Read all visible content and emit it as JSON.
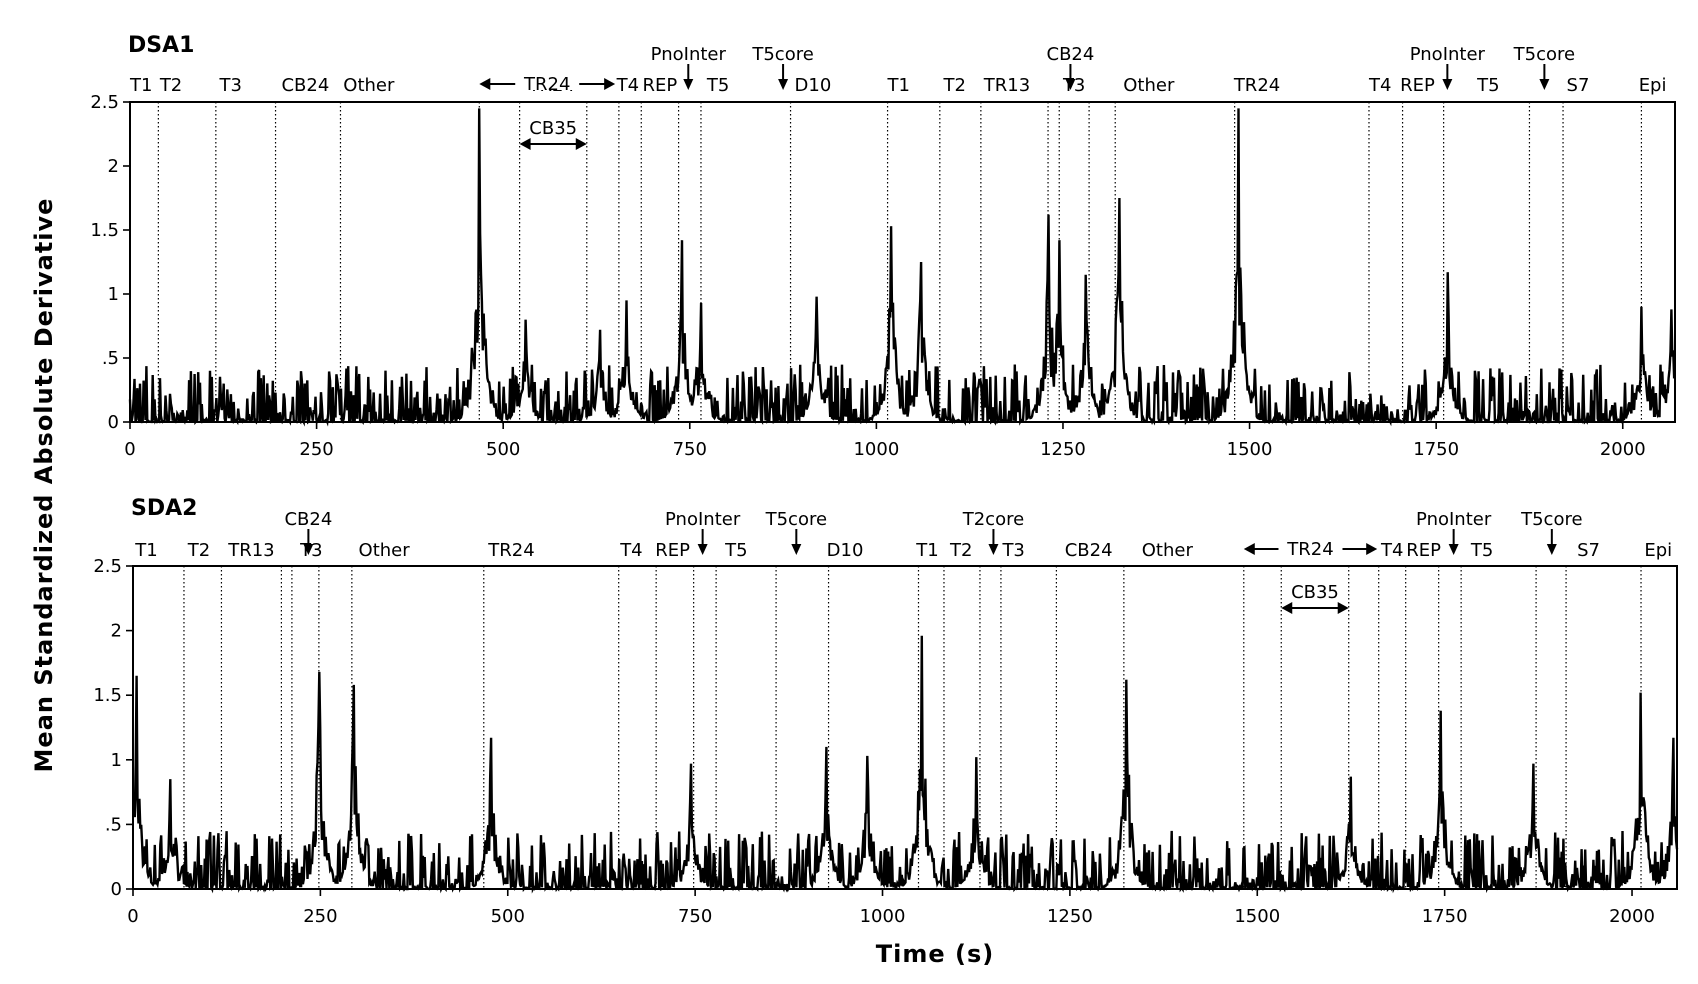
{
  "figure": {
    "ylabel": "Mean Standardized Absolute Derivative",
    "xlabel": "Time (s)"
  },
  "chart_data": [
    {
      "type": "line",
      "title": "DSA1",
      "xlim": [
        0,
        2070
      ],
      "ylim": [
        0,
        2.5
      ],
      "xticks": [
        0,
        250,
        500,
        750,
        1000,
        1250,
        1500,
        1750,
        2000
      ],
      "yticks": [
        0,
        0.5,
        1,
        1.5,
        2,
        2.5
      ],
      "ytick_labels": [
        "0",
        ".5",
        "1",
        "1.5",
        "2",
        "2.5"
      ],
      "grid": false,
      "boundaries": [
        38,
        115,
        195,
        282,
        468,
        522,
        612,
        655,
        685,
        735,
        765,
        885,
        1015,
        1085,
        1140,
        1230,
        1245,
        1285,
        1320,
        1480,
        1660,
        1705,
        1760,
        1875,
        1920,
        2025
      ],
      "segments": [
        {
          "label": "T1",
          "x": 15
        },
        {
          "label": "T2",
          "x": 55
        },
        {
          "label": "T3",
          "x": 135
        },
        {
          "label": "CB24",
          "x": 235
        },
        {
          "label": "Other",
          "x": 320
        },
        {
          "label": "TR24",
          "x": 565
        },
        {
          "label": "T4",
          "x": 667
        },
        {
          "label": "REP",
          "x": 710
        },
        {
          "label": "T5",
          "x": 788
        },
        {
          "label": "D10",
          "x": 915
        },
        {
          "label": "T1",
          "x": 1030
        },
        {
          "label": "T2",
          "x": 1105
        },
        {
          "label": "TR13",
          "x": 1175
        },
        {
          "label": "T3",
          "x": 1265
        },
        {
          "label": "Other",
          "x": 1365
        },
        {
          "label": "TR24",
          "x": 1510
        },
        {
          "label": "T4",
          "x": 1675
        },
        {
          "label": "REP",
          "x": 1725
        },
        {
          "label": "T5",
          "x": 1820
        },
        {
          "label": "S7",
          "x": 1940
        },
        {
          "label": "Epi",
          "x": 2040
        }
      ],
      "events": [
        {
          "label": "PnoInter",
          "x": 748
        },
        {
          "label": "T5core",
          "x": 875
        },
        {
          "label": "CB24",
          "x": 1260
        },
        {
          "label": "PnoInter",
          "x": 1765
        },
        {
          "label": "T5core",
          "x": 1895
        }
      ],
      "spans": [
        {
          "label": "TR24",
          "x_start": 468,
          "x_end": 650
        },
        {
          "label": "CB35",
          "x_start": 522,
          "x_end": 612
        }
      ],
      "peaks": [
        {
          "x": 468,
          "y": 2.45
        },
        {
          "x": 530,
          "y": 0.8
        },
        {
          "x": 630,
          "y": 0.72
        },
        {
          "x": 665,
          "y": 0.95
        },
        {
          "x": 740,
          "y": 1.42
        },
        {
          "x": 765,
          "y": 0.93
        },
        {
          "x": 920,
          "y": 0.98
        },
        {
          "x": 1020,
          "y": 1.53
        },
        {
          "x": 1060,
          "y": 1.25
        },
        {
          "x": 1230,
          "y": 1.62
        },
        {
          "x": 1245,
          "y": 1.42
        },
        {
          "x": 1280,
          "y": 1.15
        },
        {
          "x": 1325,
          "y": 1.75
        },
        {
          "x": 1485,
          "y": 2.45
        },
        {
          "x": 1765,
          "y": 1.17
        },
        {
          "x": 2025,
          "y": 0.9
        },
        {
          "x": 2065,
          "y": 0.88
        }
      ]
    },
    {
      "type": "line",
      "title": "SDA2",
      "xlim": [
        0,
        2060
      ],
      "ylim": [
        0,
        2.5
      ],
      "xticks": [
        0,
        250,
        500,
        750,
        1000,
        1250,
        1500,
        1750,
        2000
      ],
      "yticks": [
        0,
        0.5,
        1,
        1.5,
        2,
        2.5
      ],
      "ytick_labels": [
        "0",
        ".5",
        "1",
        "1.5",
        "2",
        "2.5"
      ],
      "grid": false,
      "boundaries": [
        68,
        118,
        198,
        212,
        248,
        292,
        468,
        648,
        698,
        748,
        778,
        858,
        928,
        1048,
        1082,
        1130,
        1158,
        1232,
        1322,
        1482,
        1532,
        1622,
        1662,
        1698,
        1742,
        1772,
        1872,
        1912,
        2012
      ],
      "segments": [
        {
          "label": "T1",
          "x": 18
        },
        {
          "label": "T2",
          "x": 88
        },
        {
          "label": "TR13",
          "x": 158
        },
        {
          "label": "T3",
          "x": 238
        },
        {
          "label": "Other",
          "x": 335
        },
        {
          "label": "TR24",
          "x": 505
        },
        {
          "label": "T4",
          "x": 665
        },
        {
          "label": "REP",
          "x": 720
        },
        {
          "label": "T5",
          "x": 805
        },
        {
          "label": "D10",
          "x": 950
        },
        {
          "label": "T1",
          "x": 1060
        },
        {
          "label": "T2",
          "x": 1105
        },
        {
          "label": "T3",
          "x": 1175
        },
        {
          "label": "CB24",
          "x": 1275
        },
        {
          "label": "Other",
          "x": 1380
        },
        {
          "label": "T4",
          "x": 1680
        },
        {
          "label": "REP",
          "x": 1722
        },
        {
          "label": "T5",
          "x": 1800
        },
        {
          "label": "S7",
          "x": 1942
        },
        {
          "label": "Epi",
          "x": 2035
        }
      ],
      "events": [
        {
          "label": "CB24",
          "x": 234
        },
        {
          "label": "PnoInter",
          "x": 760
        },
        {
          "label": "T5core",
          "x": 885
        },
        {
          "label": "T2core",
          "x": 1148
        },
        {
          "label": "PnoInter",
          "x": 1762
        },
        {
          "label": "T5core",
          "x": 1893
        }
      ],
      "spans": [
        {
          "label": "TR24",
          "x_start": 1482,
          "x_end": 1660
        },
        {
          "label": "CB35",
          "x_start": 1532,
          "x_end": 1622
        }
      ],
      "peaks": [
        {
          "x": 5,
          "y": 1.65
        },
        {
          "x": 50,
          "y": 0.85
        },
        {
          "x": 248,
          "y": 1.68
        },
        {
          "x": 295,
          "y": 1.58
        },
        {
          "x": 478,
          "y": 1.17
        },
        {
          "x": 745,
          "y": 0.97
        },
        {
          "x": 925,
          "y": 1.1
        },
        {
          "x": 980,
          "y": 1.03
        },
        {
          "x": 1052,
          "y": 1.96
        },
        {
          "x": 1125,
          "y": 1.02
        },
        {
          "x": 1325,
          "y": 1.62
        },
        {
          "x": 1625,
          "y": 0.87
        },
        {
          "x": 1745,
          "y": 1.38
        },
        {
          "x": 1868,
          "y": 0.97
        },
        {
          "x": 2012,
          "y": 1.52
        },
        {
          "x": 2055,
          "y": 1.17
        }
      ]
    }
  ]
}
